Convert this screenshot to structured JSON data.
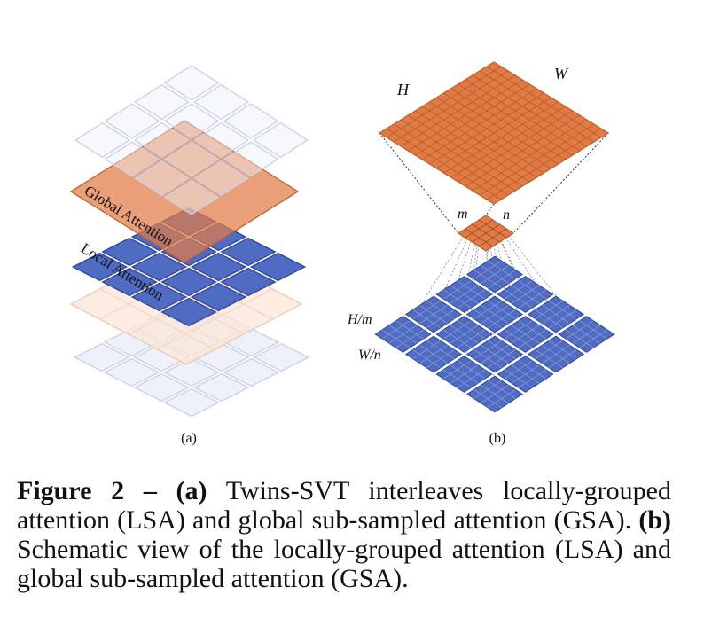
{
  "panel_a": {
    "sublabel": "(a)",
    "layer_global_label": "Global Attention",
    "layer_local_label": "Local Attention"
  },
  "panel_b": {
    "sublabel": "(b)",
    "label_H": "H",
    "label_W": "W",
    "label_m": "m",
    "label_n": "n",
    "label_Hm": "H/m",
    "label_Wn": "W/n"
  },
  "caption": {
    "figure_label": "Figure 2",
    "dash": " – ",
    "a_tag": "(a)",
    "a_text": " Twins-SVT interleaves locally-grouped attention (LSA) and global sub-sampled attention (GSA).",
    "b_tag": "(b)",
    "b_text": " Schematic view of the locally-grouped attention (LSA) and global sub-sampled attention (GSA)."
  },
  "colors": {
    "orange": "#e07b45",
    "orange_dark": "#c0612c",
    "blue": "#4f6bc2",
    "blue_dark": "#2f479c",
    "grid_light": "#c7d0ea",
    "grid_light_fill": "#edf0f9",
    "peach_fill": "#fbe6d8"
  }
}
